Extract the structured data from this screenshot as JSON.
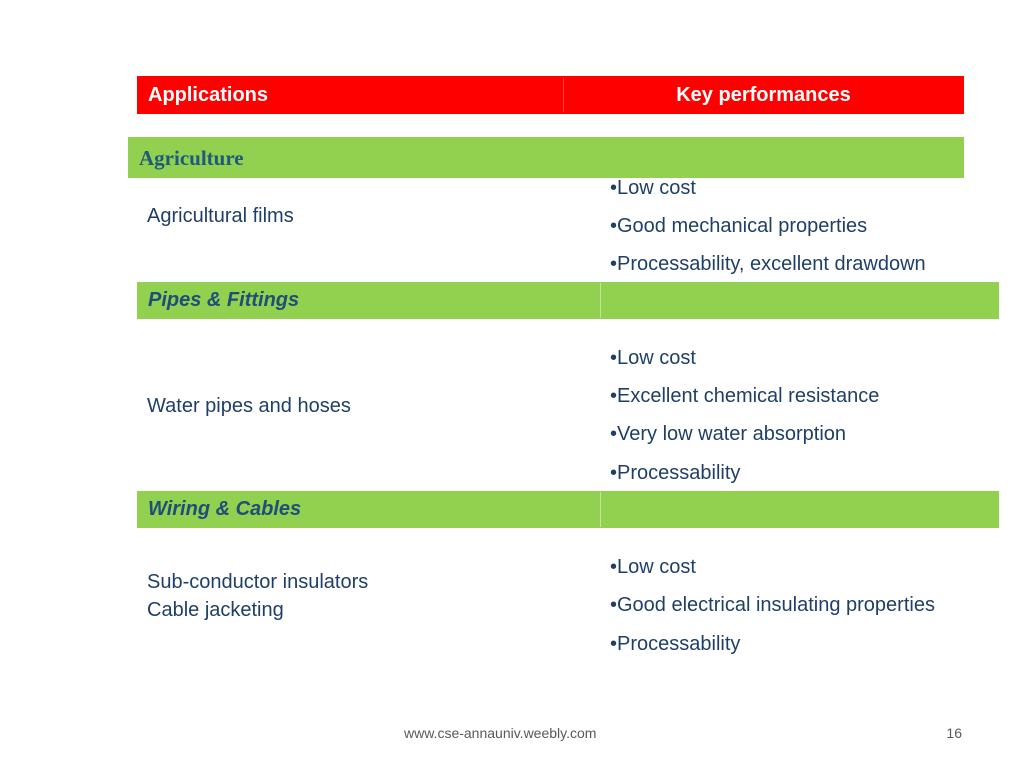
{
  "table": {
    "header": {
      "applications": "Applications",
      "key_performances": "Key performances"
    },
    "sections": [
      {
        "title": "Agriculture",
        "application_lines": [
          "Agricultural films"
        ],
        "performances": [
          "•Low cost",
          "•Good mechanical properties",
          "•Processability, excellent drawdown"
        ]
      },
      {
        "title": "Pipes & Fittings",
        "application_lines": [
          "Water pipes and hoses"
        ],
        "performances": [
          "•Low cost",
          "•Excellent chemical resistance",
          "•Very low water absorption",
          "•Processability"
        ]
      },
      {
        "title": "Wiring & Cables",
        "application_lines": [
          "Sub-conductor insulators",
          "Cable jacketing"
        ],
        "performances": [
          "•Low cost",
          "•Good electrical insulating properties",
          "•Processability"
        ]
      }
    ]
  },
  "footer": {
    "url": "www.cse-annauniv.weebly.com",
    "page_number": "16"
  },
  "colors": {
    "header_bg": "#ff0000",
    "section_bg": "#92d050",
    "text": "#1f3f66"
  }
}
